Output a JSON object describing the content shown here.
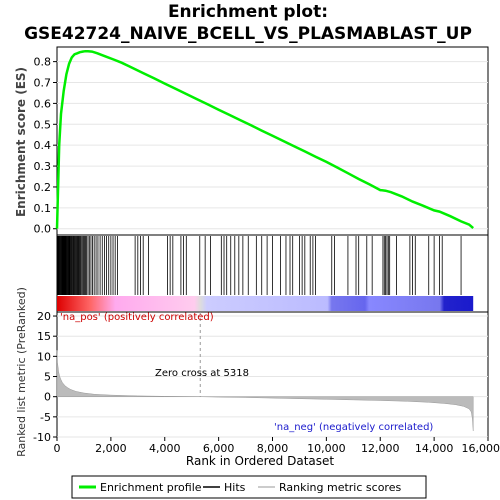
{
  "chart_data": {
    "type": "line",
    "title_lines": [
      "Enrichment plot:",
      "GSE42724_NAIVE_BCELL_VS_PLASMABLAST_UP"
    ],
    "es_panel": {
      "ylabel": "Enrichment score (ES)",
      "ylim": [
        -0.03,
        0.87
      ],
      "yticks": [
        0.0,
        0.1,
        0.2,
        0.3,
        0.4,
        0.5,
        0.6,
        0.7,
        0.8
      ],
      "ytick_labels": [
        "0.0",
        "0.1",
        "0.2",
        "0.3",
        "0.4",
        "0.5",
        "0.6",
        "0.7",
        "0.8"
      ],
      "line_color": "#00ee00",
      "series": {
        "name": "Enrichment profile",
        "x": [
          0,
          40,
          80,
          150,
          250,
          350,
          450,
          550,
          650,
          750,
          850,
          950,
          1050,
          1150,
          1300,
          1500,
          1800,
          2100,
          2400,
          2800,
          3200,
          3600,
          4000,
          4400,
          4800,
          5200,
          5600,
          6000,
          6400,
          6800,
          7200,
          7600,
          8000,
          8400,
          8800,
          9200,
          9600,
          10000,
          10400,
          10800,
          11200,
          11600,
          12000,
          12200,
          12400,
          12800,
          13200,
          13600,
          14000,
          14200,
          14600,
          15000,
          15300,
          15450
        ],
        "y": [
          0.0,
          0.2,
          0.4,
          0.55,
          0.66,
          0.74,
          0.79,
          0.82,
          0.835,
          0.84,
          0.845,
          0.848,
          0.85,
          0.85,
          0.848,
          0.84,
          0.825,
          0.81,
          0.795,
          0.77,
          0.745,
          0.72,
          0.695,
          0.67,
          0.645,
          0.62,
          0.595,
          0.57,
          0.545,
          0.52,
          0.495,
          0.47,
          0.445,
          0.42,
          0.395,
          0.37,
          0.345,
          0.32,
          0.293,
          0.266,
          0.238,
          0.212,
          0.185,
          0.182,
          0.175,
          0.155,
          0.13,
          0.11,
          0.088,
          0.082,
          0.06,
          0.035,
          0.02,
          0.003
        ]
      }
    },
    "hits_panel": {
      "hit_positions": [
        30,
        50,
        70,
        90,
        110,
        130,
        150,
        170,
        190,
        210,
        230,
        250,
        270,
        290,
        310,
        330,
        350,
        370,
        390,
        410,
        430,
        450,
        470,
        490,
        520,
        540,
        570,
        600,
        630,
        660,
        690,
        720,
        750,
        780,
        810,
        840,
        870,
        900,
        940,
        980,
        1020,
        1060,
        1100,
        1150,
        1200,
        1260,
        1320,
        1380,
        1450,
        1520,
        1600,
        1680,
        1760,
        1840,
        1920,
        2000,
        2080,
        2160,
        2250,
        2900,
        3000,
        3100,
        3200,
        3400,
        4100,
        4200,
        4300,
        4600,
        4700,
        4800,
        5300,
        5500,
        5700,
        6100,
        6200,
        6300,
        6450,
        6600,
        6750,
        6900,
        7100,
        7400,
        7600,
        7800,
        8000,
        8300,
        8500,
        8650,
        8750,
        9000,
        9100,
        9200,
        9400,
        9500,
        9600,
        10200,
        10300,
        10800,
        11100,
        11200,
        11500,
        11700,
        12100,
        12150,
        12200,
        12250,
        12300,
        12350,
        12600,
        13100,
        13200,
        13300,
        13800,
        14000,
        14200,
        14300,
        15000
      ]
    },
    "rank_panel": {
      "ylabel": "Ranked list metric (PreRanked)",
      "xlabel": "Rank in Ordered Dataset",
      "ylim": [
        -10,
        21
      ],
      "yticks": [
        -10,
        -5,
        0,
        5,
        10,
        15,
        20
      ],
      "ytick_labels": [
        "-10",
        "-5",
        "0",
        "5",
        "10",
        "15",
        "20"
      ],
      "xlim": [
        0,
        16000
      ],
      "xticks": [
        0,
        2000,
        4000,
        6000,
        8000,
        10000,
        12000,
        14000,
        16000
      ],
      "xtick_labels": [
        "0",
        "2,000",
        "4,000",
        "6,000",
        "8,000",
        "10,000",
        "12,000",
        "14,000",
        "16,000"
      ],
      "metric_x": [
        0,
        20,
        60,
        100,
        150,
        200,
        300,
        400,
        500,
        700,
        1000,
        1400,
        2000,
        3000,
        4000,
        5318,
        6000,
        7000,
        8000,
        9000,
        10000,
        11000,
        12000,
        13000,
        13800,
        14400,
        14800,
        15100,
        15300,
        15380,
        15420,
        15450
      ],
      "metric_y": [
        11.5,
        8.5,
        6.2,
        5.0,
        4.2,
        3.5,
        2.7,
        2.2,
        1.8,
        1.3,
        0.9,
        0.6,
        0.4,
        0.2,
        0.1,
        0.0,
        -0.1,
        -0.2,
        -0.35,
        -0.5,
        -0.65,
        -0.8,
        -0.95,
        -1.15,
        -1.4,
        -1.7,
        -2.0,
        -2.4,
        -3.0,
        -3.8,
        -5.5,
        -8.5
      ],
      "zero_cross": 5318,
      "zero_cross_label": "Zero cross at 5318",
      "pos_label": "'na_pos' (positively correlated)",
      "neg_label": "'na_neg' (negatively correlated)"
    },
    "total_ranks": 15450,
    "legend": {
      "placement": "bottom",
      "items": [
        {
          "label": "Enrichment profile",
          "color": "#00ee00"
        },
        {
          "label": "Hits",
          "color": "#000000"
        },
        {
          "label": "Ranking metric scores",
          "color": "#bbbbbb"
        }
      ]
    }
  }
}
